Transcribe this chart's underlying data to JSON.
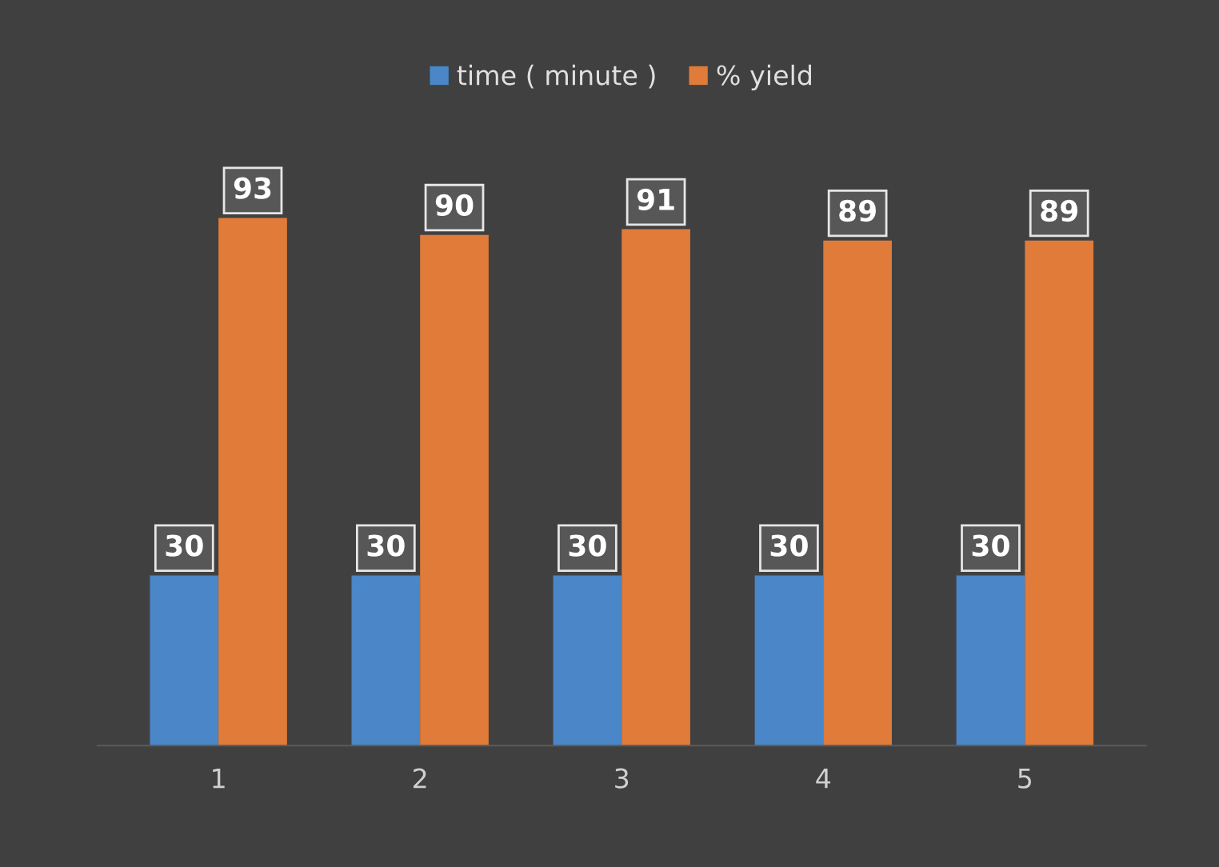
{
  "chart_data": {
    "type": "bar",
    "categories": [
      "1",
      "2",
      "3",
      "4",
      "5"
    ],
    "series": [
      {
        "name": "time ( minute )",
        "color": "#4a86c8",
        "values": [
          30,
          30,
          30,
          30,
          30
        ]
      },
      {
        "name": "% yield",
        "color": "#e07b39",
        "values": [
          93,
          90,
          91,
          89,
          89
        ]
      }
    ],
    "data_labels": true,
    "legend": "top",
    "grid": false
  }
}
